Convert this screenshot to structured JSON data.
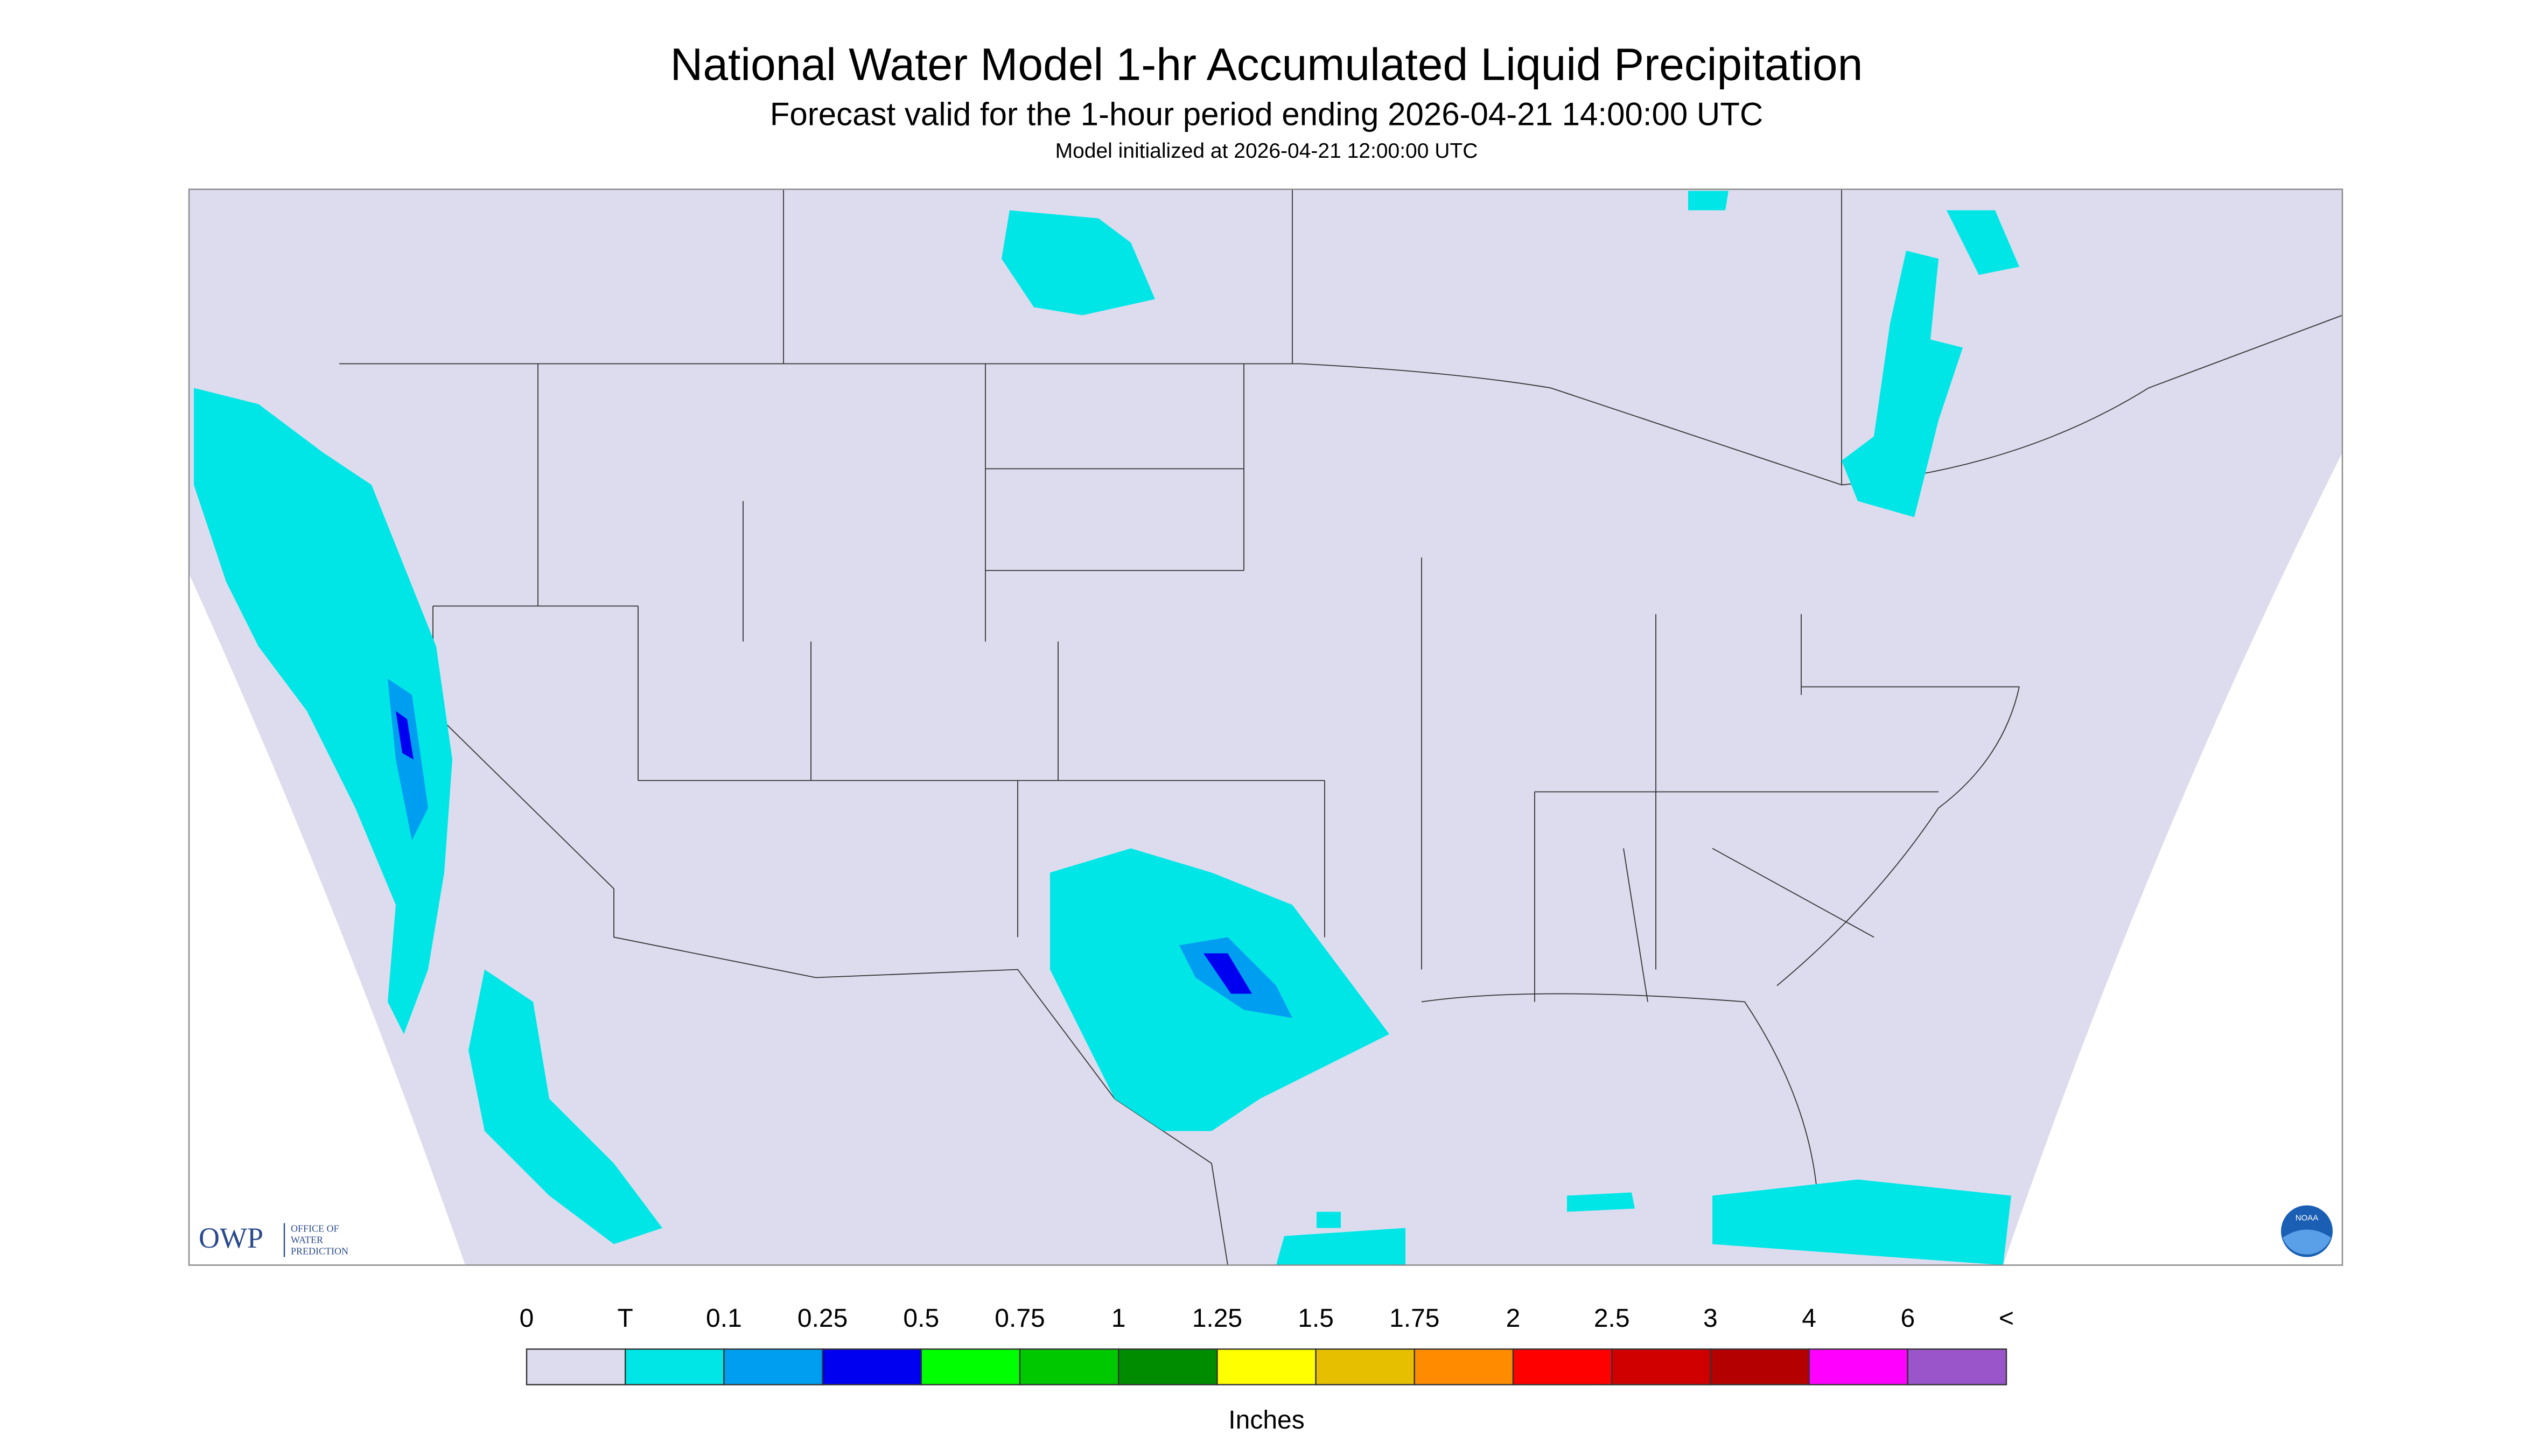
{
  "header": {
    "title": "National Water Model 1-hr Accumulated Liquid Precipitation",
    "subtitle": "Forecast valid for the 1-hour period ending 2026-04-21 14:00:00 UTC",
    "init": "Model initialized at 2026-04-21 12:00:00 UTC"
  },
  "logos": {
    "owp": "OWP",
    "owp_name": [
      "OFFICE OF",
      "WATER",
      "PREDICTION"
    ],
    "noaa": "NOAA"
  },
  "legend": {
    "labels": [
      "0",
      "T",
      "0.1",
      "0.25",
      "0.5",
      "0.75",
      "1",
      "1.25",
      "1.5",
      "1.75",
      "2",
      "2.5",
      "3",
      "4",
      "6",
      "<"
    ],
    "colors": [
      "#dcdcee",
      "#00e6e6",
      "#009ef0",
      "#0000f0",
      "#00ff00",
      "#00c800",
      "#008c00",
      "#ffff00",
      "#e6c000",
      "#ff8c00",
      "#ff0000",
      "#d00000",
      "#b40000",
      "#ff00ff",
      "#9955c9"
    ],
    "units": "Inches"
  }
}
